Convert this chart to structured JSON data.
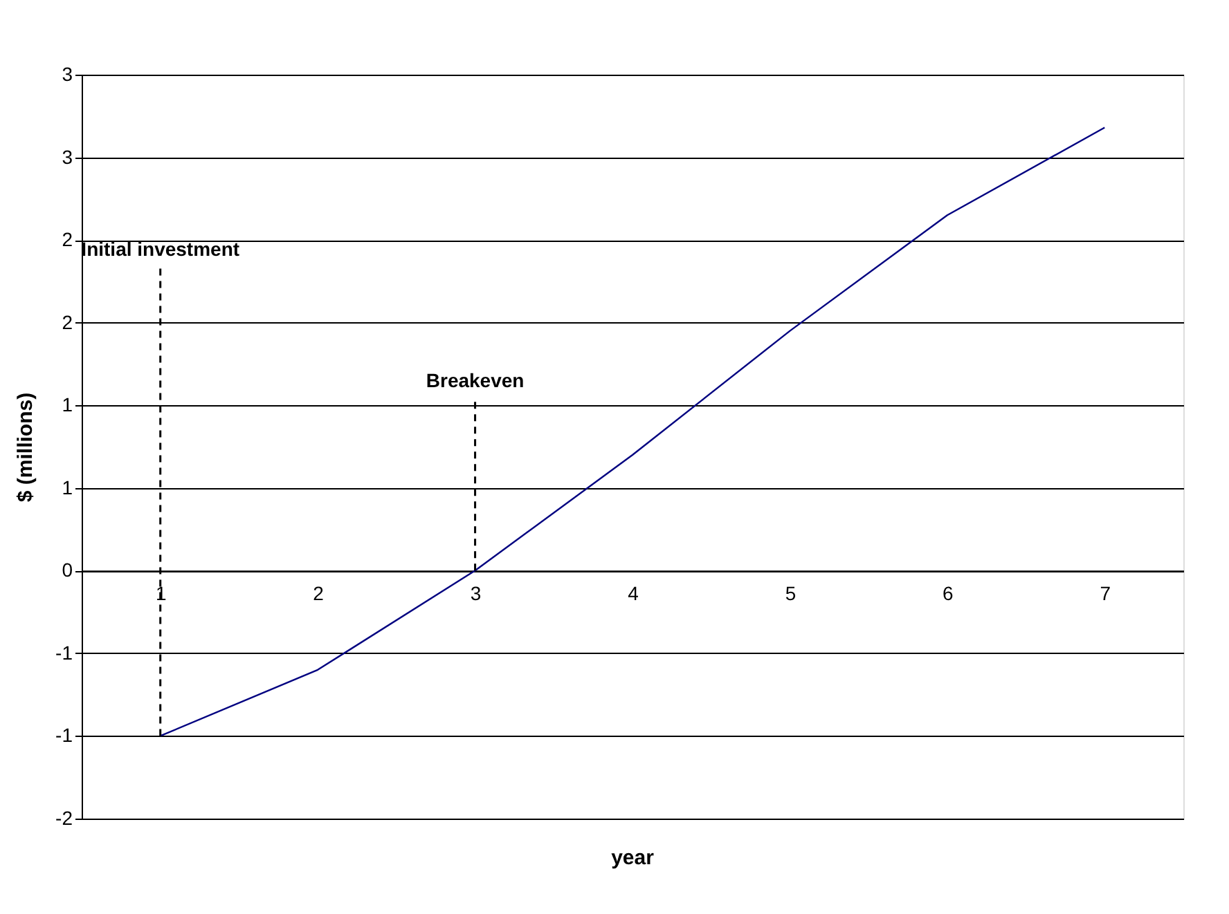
{
  "chart_data": {
    "type": "line",
    "xlabel": "year",
    "ylabel": "$ (millions)",
    "categories": [
      "1",
      "2",
      "3",
      "4",
      "5",
      "6",
      "7"
    ],
    "series": [
      {
        "color": "#000080",
        "values": [
          -1.0,
          -0.6,
          0.0,
          0.7,
          1.45,
          2.15,
          2.68
        ]
      }
    ],
    "ylim": [
      -1.5,
      3
    ],
    "yticks": [
      {
        "value": -1.5,
        "label": "-2"
      },
      {
        "value": -1,
        "label": "-1"
      },
      {
        "value": -0.5,
        "label": "-1"
      },
      0,
      {
        "value": 0.5,
        "label": "1"
      },
      {
        "value": 1,
        "label": "1"
      },
      {
        "value": 1.5,
        "label": "2"
      },
      {
        "value": 2,
        "label": "2"
      },
      {
        "value": 2.5,
        "label": "3"
      },
      {
        "value": 3,
        "label": "3"
      }
    ],
    "grid": "y",
    "marker": "none",
    "line_style": "solid",
    "annotations": [
      {
        "text": "Initial investment",
        "x": "1",
        "y": -1
      },
      {
        "text": "Breakeven",
        "x": "3",
        "y": 0
      }
    ]
  }
}
